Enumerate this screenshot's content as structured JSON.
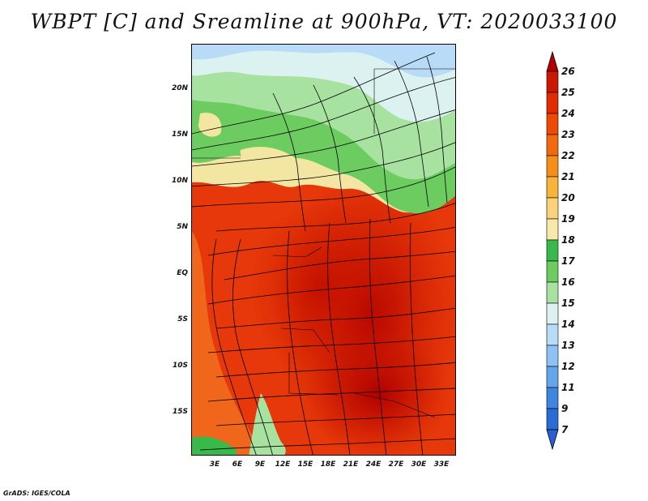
{
  "title": "WBPT [C] and Sreamline at 900hPa, VT: 2020033100",
  "credit": "GrADS: IGES/COLA",
  "axes": {
    "lat_labels": [
      "20N",
      "15N",
      "10N",
      "5N",
      "EQ",
      "5S",
      "10S",
      "15S"
    ],
    "lon_labels": [
      "3E",
      "6E",
      "9E",
      "12E",
      "15E",
      "18E",
      "21E",
      "24E",
      "27E",
      "30E",
      "33E"
    ]
  },
  "colorbar": {
    "labels": [
      "26",
      "25",
      "24",
      "23",
      "22",
      "21",
      "20",
      "19",
      "18",
      "17",
      "16",
      "15",
      "14",
      "13",
      "12",
      "11",
      "9",
      "7"
    ],
    "colors": [
      "#b30000",
      "#cc1800",
      "#e02c00",
      "#ee4a06",
      "#f26a10",
      "#f58f1a",
      "#f8b33a",
      "#f9d27a",
      "#f7e9a8",
      "#38b94a",
      "#6ccc60",
      "#a8e2a0",
      "#dcf2f0",
      "#b8dcf8",
      "#8ec2f4",
      "#64a6ec",
      "#3e86e0",
      "#2a6cd6",
      "#2a5ed4"
    ]
  },
  "map": {
    "field": "Wet-bulb potential temperature",
    "units": "C",
    "level": "900hPa"
  }
}
